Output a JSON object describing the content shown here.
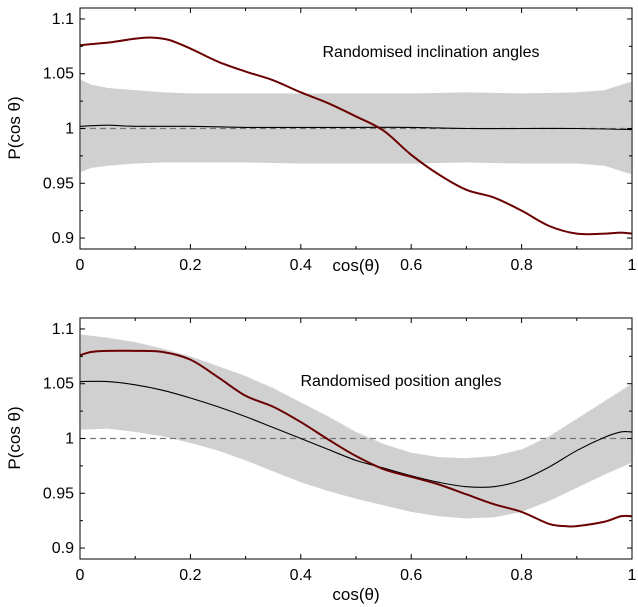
{
  "chart_data": [
    {
      "type": "line",
      "annotation": "Randomised inclination angles",
      "xlabel": "cos(θ)",
      "ylabel": "P(cos θ)",
      "xlim": [
        0,
        1
      ],
      "ylim": [
        0.89,
        1.11
      ],
      "xticks": [
        "0",
        "0.2",
        "0.4",
        "0.6",
        "0.8",
        "1"
      ],
      "yticks": [
        "0.9",
        "0.95",
        "1",
        "1.05",
        "1.1"
      ],
      "grid": false,
      "reference_line": 1.0,
      "colors": {
        "observed": "#6b0000",
        "mean": "#000000",
        "band": "#a9a9a9",
        "reference": "#777777"
      },
      "series": [
        {
          "role": "observed",
          "x": [
            0,
            0.02,
            0.06,
            0.1,
            0.13,
            0.16,
            0.2,
            0.25,
            0.3,
            0.35,
            0.4,
            0.45,
            0.5,
            0.55,
            0.6,
            0.65,
            0.7,
            0.75,
            0.8,
            0.85,
            0.9,
            0.95,
            0.98,
            1.0
          ],
          "values": [
            1.076,
            1.077,
            1.079,
            1.082,
            1.083,
            1.081,
            1.073,
            1.061,
            1.052,
            1.044,
            1.033,
            1.023,
            1.011,
            0.998,
            0.976,
            0.958,
            0.944,
            0.937,
            0.925,
            0.911,
            0.904,
            0.904,
            0.905,
            0.904
          ]
        },
        {
          "role": "mean",
          "x": [
            0,
            0.05,
            0.1,
            0.2,
            0.3,
            0.4,
            0.5,
            0.6,
            0.7,
            0.8,
            0.9,
            1.0
          ],
          "values": [
            1.002,
            1.003,
            1.002,
            1.002,
            1.001,
            1.001,
            1.001,
            1.001,
            1.0,
            1.0,
            1.0,
            0.999
          ]
        }
      ],
      "band": {
        "x": [
          0,
          0.02,
          0.05,
          0.1,
          0.15,
          0.2,
          0.3,
          0.4,
          0.5,
          0.6,
          0.7,
          0.8,
          0.9,
          0.95,
          1.0
        ],
        "upper": [
          1.045,
          1.04,
          1.037,
          1.035,
          1.033,
          1.032,
          1.032,
          1.032,
          1.032,
          1.032,
          1.033,
          1.032,
          1.033,
          1.035,
          1.043
        ],
        "lower": [
          0.96,
          0.964,
          0.966,
          0.968,
          0.969,
          0.969,
          0.969,
          0.968,
          0.968,
          0.968,
          0.969,
          0.968,
          0.968,
          0.966,
          0.958
        ]
      }
    },
    {
      "type": "line",
      "annotation": "Randomised position angles",
      "xlabel": "cos(θ)",
      "ylabel": "P(cos θ)",
      "xlim": [
        0,
        1
      ],
      "ylim": [
        0.89,
        1.11
      ],
      "xticks": [
        "0",
        "0.2",
        "0.4",
        "0.6",
        "0.8",
        "1"
      ],
      "yticks": [
        "0.9",
        "0.95",
        "1",
        "1.05",
        "1.1"
      ],
      "grid": false,
      "reference_line": 1.0,
      "colors": {
        "observed": "#6b0000",
        "mean": "#000000",
        "band": "#a9a9a9",
        "reference": "#777777"
      },
      "series": [
        {
          "role": "observed",
          "x": [
            0,
            0.02,
            0.05,
            0.1,
            0.15,
            0.2,
            0.25,
            0.3,
            0.35,
            0.4,
            0.45,
            0.5,
            0.55,
            0.6,
            0.65,
            0.7,
            0.75,
            0.8,
            0.85,
            0.88,
            0.9,
            0.95,
            0.98,
            1.0
          ],
          "values": [
            1.076,
            1.079,
            1.08,
            1.08,
            1.079,
            1.072,
            1.056,
            1.039,
            1.029,
            1.015,
            0.999,
            0.984,
            0.972,
            0.965,
            0.958,
            0.949,
            0.94,
            0.933,
            0.922,
            0.92,
            0.92,
            0.924,
            0.929,
            0.929
          ]
        },
        {
          "role": "mean",
          "x": [
            0,
            0.05,
            0.1,
            0.15,
            0.2,
            0.25,
            0.3,
            0.35,
            0.4,
            0.45,
            0.5,
            0.55,
            0.6,
            0.65,
            0.7,
            0.75,
            0.8,
            0.85,
            0.9,
            0.95,
            0.98,
            1.0
          ],
          "values": [
            1.052,
            1.052,
            1.049,
            1.044,
            1.037,
            1.029,
            1.02,
            1.01,
            1.0,
            0.99,
            0.98,
            0.973,
            0.966,
            0.96,
            0.956,
            0.956,
            0.962,
            0.974,
            0.989,
            1.001,
            1.006,
            1.006
          ]
        }
      ],
      "band": {
        "x": [
          0,
          0.05,
          0.1,
          0.15,
          0.2,
          0.25,
          0.3,
          0.35,
          0.4,
          0.45,
          0.5,
          0.55,
          0.6,
          0.65,
          0.7,
          0.75,
          0.8,
          0.85,
          0.9,
          0.95,
          1.0
        ],
        "upper": [
          1.095,
          1.092,
          1.088,
          1.082,
          1.075,
          1.066,
          1.057,
          1.046,
          1.033,
          1.02,
          1.006,
          0.995,
          0.987,
          0.983,
          0.982,
          0.984,
          0.99,
          1.002,
          1.018,
          1.034,
          1.05
        ],
        "lower": [
          1.008,
          1.009,
          1.006,
          1.002,
          0.996,
          0.989,
          0.98,
          0.97,
          0.96,
          0.952,
          0.945,
          0.939,
          0.933,
          0.929,
          0.927,
          0.928,
          0.933,
          0.943,
          0.955,
          0.967,
          0.978
        ]
      }
    }
  ]
}
